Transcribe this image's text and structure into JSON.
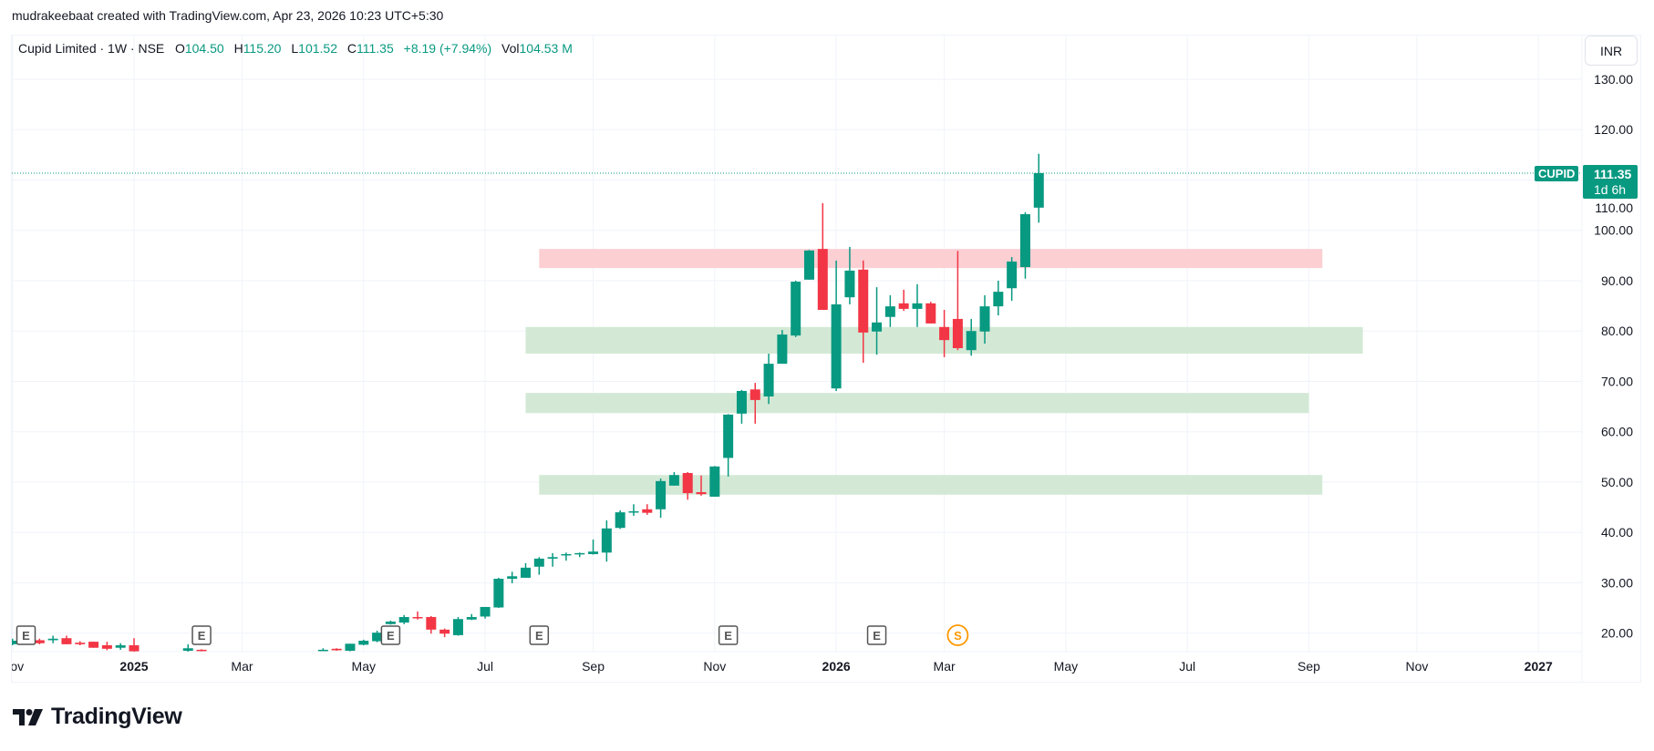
{
  "attribution": "mudrakeebaat created with TradingView.com, Apr 23, 2026 10:23 UTC+5:30",
  "legend": {
    "title": "Cupid Limited · 1W · NSE",
    "o_label": "O",
    "o": "104.50",
    "h_label": "H",
    "h": "115.20",
    "l_label": "L",
    "l": "101.52",
    "c_label": "C",
    "c": "111.35",
    "change": "+8.19 (+7.94%)",
    "vol_label": "Vol",
    "vol": "104.53 M"
  },
  "currency": "INR",
  "last_price": {
    "symbol": "CUPID",
    "price": "111.35",
    "countdown": "1d 6h"
  },
  "logo_text": "TradingView",
  "colors": {
    "up": "#089981",
    "down": "#f23645",
    "zone_red": "#fccfd3",
    "zone_green": "#d3e9d5",
    "grid": "#f0f3fa"
  },
  "chart_data": {
    "type": "candlestick",
    "interval": "1W",
    "ylim": [
      12,
      133
    ],
    "y_ticks": [
      "130.00",
      "120.00",
      "110.00",
      "100.00",
      "90.00",
      "80.00",
      "70.00",
      "60.00",
      "50.00",
      "40.00",
      "30.00",
      "20.00"
    ],
    "y_tick_values": [
      130,
      120,
      110,
      100,
      90,
      80,
      70,
      60,
      50,
      40,
      30,
      20
    ],
    "x_ticks": [
      {
        "label": "Nov",
        "date": "2024-11-04",
        "bold": false
      },
      {
        "label": "2025",
        "date": "2025-01-06",
        "bold": true
      },
      {
        "label": "Mar",
        "date": "2025-03-03",
        "bold": false
      },
      {
        "label": "May",
        "date": "2025-05-05",
        "bold": false
      },
      {
        "label": "Jul",
        "date": "2025-07-07",
        "bold": false
      },
      {
        "label": "Sep",
        "date": "2025-09-01",
        "bold": false
      },
      {
        "label": "Nov",
        "date": "2025-11-03",
        "bold": false
      },
      {
        "label": "2026",
        "date": "2026-01-05",
        "bold": true
      },
      {
        "label": "Mar",
        "date": "2026-03-02",
        "bold": false
      },
      {
        "label": "May",
        "date": "2026-05-04",
        "bold": false
      },
      {
        "label": "Jul",
        "date": "2026-07-06",
        "bold": false
      },
      {
        "label": "Sep",
        "date": "2026-09-07",
        "bold": false
      },
      {
        "label": "Nov",
        "date": "2026-11-02",
        "bold": false
      },
      {
        "label": "2027",
        "date": "2027-01-04",
        "bold": true
      }
    ],
    "grid": true,
    "candles_columns": [
      "date",
      "open",
      "high",
      "low",
      "close"
    ],
    "candles": [
      [
        "2024-11-04",
        17.8,
        18.9,
        17.6,
        18.5
      ],
      [
        "2024-11-18",
        18.6,
        18.9,
        17.8,
        18.0
      ],
      [
        "2024-11-25",
        18.6,
        19.5,
        18.0,
        18.9
      ],
      [
        "2024-12-02",
        19.0,
        19.5,
        17.8,
        17.8
      ],
      [
        "2024-12-09",
        18.1,
        18.4,
        17.6,
        17.8
      ],
      [
        "2024-12-16",
        18.3,
        18.3,
        17.1,
        17.1
      ],
      [
        "2024-12-23",
        17.6,
        18.3,
        16.6,
        16.9
      ],
      [
        "2024-12-30",
        17.1,
        18.0,
        16.7,
        17.6
      ],
      [
        "2025-01-06",
        17.6,
        19.0,
        16.3,
        16.4
      ],
      [
        "2025-02-03",
        16.5,
        17.8,
        16.3,
        17.0
      ],
      [
        "2025-02-10",
        16.7,
        16.8,
        16.4,
        16.5
      ],
      [
        "2025-04-14",
        16.6,
        17.0,
        16.5,
        16.7
      ],
      [
        "2025-04-21",
        16.9,
        17.0,
        16.5,
        16.6
      ],
      [
        "2025-04-28",
        16.5,
        17.9,
        16.4,
        17.9
      ],
      [
        "2025-05-05",
        17.7,
        18.7,
        17.6,
        18.5
      ],
      [
        "2025-05-12",
        18.4,
        20.5,
        18.2,
        20.1
      ],
      [
        "2025-05-19",
        21.8,
        22.5,
        21.7,
        22.3
      ],
      [
        "2025-05-26",
        22.1,
        23.6,
        21.8,
        23.2
      ],
      [
        "2025-06-02",
        23.2,
        24.3,
        22.7,
        23.1
      ],
      [
        "2025-06-09",
        23.2,
        23.4,
        19.9,
        20.7
      ],
      [
        "2025-06-16",
        20.7,
        20.9,
        19.2,
        19.9
      ],
      [
        "2025-06-23",
        19.6,
        23.2,
        19.5,
        22.8
      ],
      [
        "2025-06-30",
        22.7,
        23.8,
        22.6,
        23.2
      ],
      [
        "2025-07-07",
        23.3,
        25.2,
        22.9,
        25.2
      ],
      [
        "2025-07-14",
        25.1,
        31.0,
        25.0,
        30.8
      ],
      [
        "2025-07-21",
        30.8,
        32.2,
        29.9,
        31.3
      ],
      [
        "2025-07-28",
        31.0,
        33.9,
        31.0,
        33.0
      ],
      [
        "2025-08-04",
        33.2,
        35.1,
        31.6,
        34.8
      ],
      [
        "2025-08-11",
        34.8,
        35.9,
        33.2,
        35.1
      ],
      [
        "2025-08-18",
        35.5,
        36.0,
        34.4,
        35.7
      ],
      [
        "2025-08-25",
        35.8,
        36.0,
        35.1,
        35.9
      ],
      [
        "2025-09-01",
        35.7,
        38.6,
        35.6,
        36.2
      ],
      [
        "2025-09-08",
        36.0,
        42.4,
        34.2,
        40.8
      ],
      [
        "2025-09-15",
        40.9,
        44.4,
        40.7,
        44.0
      ],
      [
        "2025-09-22",
        44.1,
        45.6,
        43.3,
        44.2
      ],
      [
        "2025-09-29",
        44.6,
        45.6,
        43.5,
        43.9
      ],
      [
        "2025-10-06",
        44.6,
        50.7,
        42.9,
        50.2
      ],
      [
        "2025-10-13",
        49.3,
        52.0,
        49.3,
        51.4
      ],
      [
        "2025-10-20",
        51.8,
        52.0,
        46.5,
        47.8
      ],
      [
        "2025-10-27",
        48.0,
        51.3,
        47.3,
        47.6
      ],
      [
        "2025-11-03",
        47.1,
        53.2,
        47.1,
        53.1
      ],
      [
        "2025-11-10",
        54.8,
        63.5,
        51.1,
        63.4
      ],
      [
        "2025-11-17",
        63.6,
        68.3,
        61.6,
        68.1
      ],
      [
        "2025-11-24",
        68.4,
        69.7,
        61.6,
        66.3
      ],
      [
        "2025-12-01",
        67.0,
        75.5,
        65.5,
        73.5
      ],
      [
        "2025-12-08",
        73.5,
        80.2,
        73.5,
        79.3
      ],
      [
        "2025-12-15",
        79.1,
        90.0,
        78.8,
        89.8
      ],
      [
        "2025-12-22",
        90.2,
        96.1,
        90.2,
        96.0
      ],
      [
        "2025-12-29",
        96.3,
        105.4,
        84.2,
        84.2
      ],
      [
        "2026-01-05",
        68.6,
        94.0,
        68.1,
        85.3
      ],
      [
        "2026-01-12",
        86.7,
        96.7,
        85.3,
        92.0
      ],
      [
        "2026-01-19",
        92.2,
        94.0,
        73.7,
        79.7
      ],
      [
        "2026-01-26",
        79.9,
        88.7,
        75.3,
        81.7
      ],
      [
        "2026-02-02",
        82.8,
        87.1,
        80.8,
        84.9
      ],
      [
        "2026-02-09",
        85.5,
        88.2,
        84.0,
        84.4
      ],
      [
        "2026-02-16",
        84.4,
        89.3,
        80.8,
        85.5
      ],
      [
        "2026-02-23",
        85.5,
        85.8,
        81.5,
        81.5
      ],
      [
        "2026-03-02",
        80.8,
        84.2,
        74.8,
        78.2
      ],
      [
        "2026-03-09",
        82.4,
        95.9,
        76.2,
        76.6
      ],
      [
        "2026-03-16",
        76.2,
        82.4,
        75.1,
        80.0
      ],
      [
        "2026-03-23",
        79.9,
        87.1,
        77.5,
        84.9
      ],
      [
        "2026-03-30",
        84.9,
        90.0,
        83.1,
        87.8
      ],
      [
        "2026-04-06",
        88.5,
        94.7,
        86.0,
        93.8
      ],
      [
        "2026-04-13",
        92.7,
        103.6,
        90.4,
        103.2
      ],
      [
        "2026-04-20",
        104.5,
        115.2,
        101.52,
        111.35
      ]
    ],
    "zones": [
      {
        "kind": "resistance",
        "color": "red",
        "from": "2025-08-04",
        "to": "2026-09-14",
        "low": 92.5,
        "high": 96.3
      },
      {
        "kind": "support",
        "color": "green",
        "from": "2025-07-28",
        "to": "2026-10-05",
        "low": 75.5,
        "high": 80.8
      },
      {
        "kind": "support",
        "color": "green",
        "from": "2025-07-28",
        "to": "2026-09-07",
        "low": 63.7,
        "high": 67.7
      },
      {
        "kind": "support",
        "color": "green",
        "from": "2025-08-04",
        "to": "2026-09-14",
        "low": 47.5,
        "high": 51.4
      }
    ],
    "events": [
      {
        "type": "earnings",
        "label": "E",
        "date": "2024-11-11"
      },
      {
        "type": "earnings",
        "label": "E",
        "date": "2025-02-10"
      },
      {
        "type": "earnings",
        "label": "E",
        "date": "2025-05-19"
      },
      {
        "type": "earnings",
        "label": "E",
        "date": "2025-08-04"
      },
      {
        "type": "earnings",
        "label": "E",
        "date": "2025-11-10"
      },
      {
        "type": "earnings",
        "label": "E",
        "date": "2026-01-26"
      },
      {
        "type": "split",
        "label": "S",
        "date": "2026-03-09"
      }
    ]
  }
}
